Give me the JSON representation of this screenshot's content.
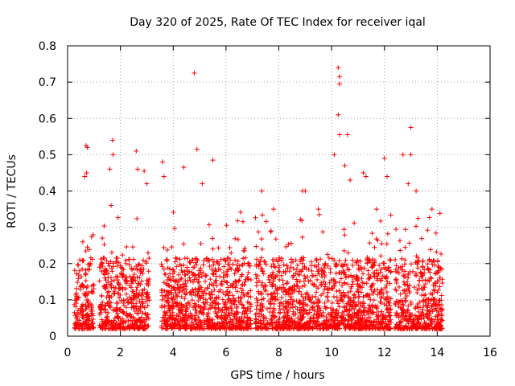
{
  "chart_data": {
    "type": "scatter",
    "title": "Day 320 of 2025, Rate Of TEC Index for receiver iqal",
    "xlabel": "GPS time / hours",
    "ylabel": "ROTI / TECUs",
    "xlim": [
      0,
      16
    ],
    "ylim": [
      0,
      0.8
    ],
    "xticks": [
      0,
      2,
      4,
      6,
      8,
      10,
      12,
      14,
      16
    ],
    "yticks": [
      0,
      0.1,
      0.2,
      0.3,
      0.4,
      0.5,
      0.6,
      0.7,
      0.8
    ],
    "ytick_labels": [
      "0",
      "0.1",
      "0.2",
      "0.3",
      "0.4",
      "0.5",
      "0.6",
      "0.7",
      "0.8"
    ],
    "grid": true,
    "marker": "+",
    "series": [
      {
        "name": "ROTI",
        "color": "#ff0000",
        "active_intervals_hours": [
          [
            0.25,
            1.0
          ],
          [
            1.2,
            3.1
          ],
          [
            3.55,
            6.95
          ],
          [
            7.1,
            12.25
          ],
          [
            12.4,
            14.2
          ]
        ],
        "typical_range": [
          0.02,
          0.3
        ],
        "bulk_median": 0.1,
        "points": [
          [
            0.7,
            0.525
          ],
          [
            0.75,
            0.52
          ],
          [
            0.65,
            0.44
          ],
          [
            0.72,
            0.45
          ],
          [
            1.7,
            0.54
          ],
          [
            1.72,
            0.5
          ],
          [
            1.6,
            0.46
          ],
          [
            1.65,
            0.36
          ],
          [
            2.6,
            0.51
          ],
          [
            2.65,
            0.46
          ],
          [
            2.9,
            0.455
          ],
          [
            3.0,
            0.42
          ],
          [
            3.6,
            0.48
          ],
          [
            3.65,
            0.44
          ],
          [
            4.4,
            0.465
          ],
          [
            4.8,
            0.725
          ],
          [
            4.9,
            0.515
          ],
          [
            5.1,
            0.42
          ],
          [
            5.5,
            0.485
          ],
          [
            7.35,
            0.4
          ],
          [
            7.8,
            0.35
          ],
          [
            8.9,
            0.4
          ],
          [
            9.0,
            0.4
          ],
          [
            9.5,
            0.35
          ],
          [
            10.25,
            0.74
          ],
          [
            10.3,
            0.715
          ],
          [
            10.3,
            0.695
          ],
          [
            10.25,
            0.61
          ],
          [
            10.3,
            0.555
          ],
          [
            10.6,
            0.555
          ],
          [
            10.1,
            0.5
          ],
          [
            10.5,
            0.47
          ],
          [
            10.7,
            0.43
          ],
          [
            11.2,
            0.45
          ],
          [
            11.3,
            0.44
          ],
          [
            11.7,
            0.35
          ],
          [
            12.0,
            0.49
          ],
          [
            12.1,
            0.44
          ],
          [
            12.7,
            0.5
          ],
          [
            13.0,
            0.575
          ],
          [
            13.0,
            0.5
          ],
          [
            12.9,
            0.42
          ],
          [
            13.2,
            0.4
          ],
          [
            13.8,
            0.35
          ]
        ]
      }
    ]
  }
}
